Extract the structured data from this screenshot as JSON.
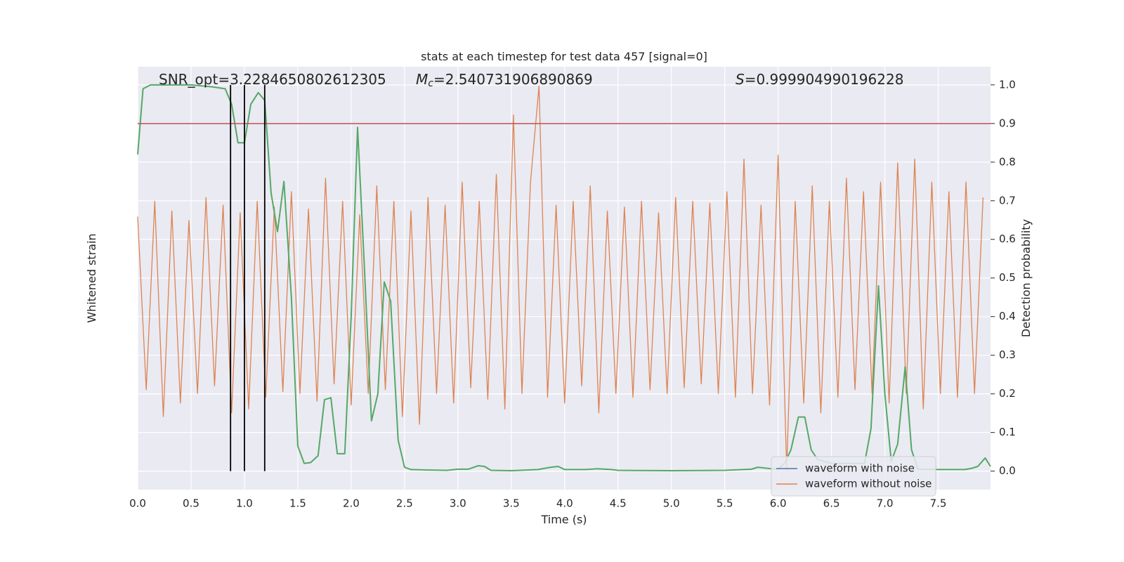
{
  "chart_data": {
    "type": "line",
    "title": "stats at each timestep for test data 457 [signal=0]",
    "xlabel": "Time (s)",
    "ylabel": "Whitened strain",
    "y2label": "Detection probability",
    "annotations": [
      {
        "text": "SNR_opt=3.2284650802612305"
      },
      {
        "symbol": "M",
        "sub": "c",
        "text": "=2.540731906890869"
      },
      {
        "symbol": "S",
        "text": "=0.999904990196228"
      }
    ],
    "xlim": [
      0,
      7.99
    ],
    "xticks": [
      {
        "value": 0,
        "label": "0.0"
      },
      0.5,
      {
        "value": 1,
        "label": "1.0"
      },
      1.5,
      {
        "value": 2,
        "label": "2.0"
      },
      2.5,
      {
        "value": 3,
        "label": "3.0"
      },
      3.5,
      {
        "value": 4,
        "label": "4.0"
      },
      4.5,
      {
        "value": 5,
        "label": "5.0"
      },
      5.5,
      {
        "value": 6,
        "label": "6.0"
      },
      6.5,
      {
        "value": 7,
        "label": "7.0"
      },
      7.5
    ],
    "ylim": [
      -1,
      1.2
    ],
    "y2lim": [
      -0.048,
      1.047
    ],
    "y2ticks": [
      {
        "value": 0,
        "label": "0.0"
      },
      0.1,
      0.2,
      0.3,
      0.4,
      0.5,
      0.6,
      0.7,
      0.8,
      0.9,
      {
        "value": 1,
        "label": "1.0"
      }
    ],
    "grid": true,
    "legend": "lower right",
    "series": [
      {
        "name": "waveform with noise",
        "color": "#4c72b0"
      },
      {
        "name": "waveform without noise",
        "color": "#dd8452",
        "x": [
          0,
          0.08,
          0.16,
          0.24,
          0.32,
          0.4,
          0.48,
          0.56,
          0.64,
          0.72,
          0.8,
          0.88,
          0.96,
          1.04,
          1.12,
          1.2,
          1.28,
          1.36,
          1.44,
          1.52,
          1.6,
          1.68,
          1.76,
          1.84,
          1.92,
          2,
          2.08,
          2.16,
          2.24,
          2.32,
          2.4,
          2.48,
          2.56,
          2.64,
          2.72,
          2.8,
          2.88,
          2.96,
          3.04,
          3.12,
          3.2,
          3.28,
          3.36,
          3.44,
          3.52,
          3.6,
          3.68,
          3.76,
          3.84,
          3.92,
          4,
          4.08,
          4.16,
          4.24,
          4.32,
          4.4,
          4.48,
          4.56,
          4.64,
          4.72,
          4.8,
          4.88,
          4.96,
          5.04,
          5.12,
          5.2,
          5.28,
          5.36,
          5.44,
          5.52,
          5.6,
          5.68,
          5.76,
          5.84,
          5.92,
          6,
          6.08,
          6.16,
          6.24,
          6.32,
          6.4,
          6.48,
          6.56,
          6.64,
          6.72,
          6.8,
          6.88,
          6.96,
          7.04,
          7.12,
          7.2,
          7.28,
          7.36,
          7.44,
          7.52,
          7.6,
          7.68,
          7.76,
          7.84,
          7.92
        ],
        "values": [
          0.42,
          -0.48,
          0.5,
          -0.62,
          0.45,
          -0.55,
          0.4,
          -0.5,
          0.52,
          -0.46,
          0.48,
          -0.6,
          0.44,
          -0.58,
          0.5,
          -0.52,
          0.47,
          -0.49,
          0.55,
          -0.5,
          0.46,
          -0.54,
          0.62,
          -0.45,
          0.5,
          -0.56,
          0.43,
          -0.5,
          0.58,
          -0.48,
          0.5,
          -0.62,
          0.45,
          -0.66,
          0.52,
          -0.5,
          0.48,
          -0.55,
          0.6,
          -0.47,
          0.5,
          -0.53,
          0.64,
          -0.58,
          0.95,
          -0.5,
          0.6,
          1.1,
          -0.52,
          0.48,
          -0.55,
          0.5,
          -0.46,
          0.58,
          -0.6,
          0.45,
          -0.5,
          0.47,
          -0.52,
          0.5,
          -0.48,
          0.44,
          -0.5,
          0.52,
          -0.47,
          0.5,
          -0.45,
          0.49,
          -0.5,
          0.55,
          -0.52,
          0.72,
          -0.5,
          0.48,
          -0.56,
          0.74,
          -0.9,
          0.5,
          -0.55,
          0.58,
          -0.6,
          0.5,
          -0.52,
          0.62,
          -0.48,
          0.55,
          -0.5,
          0.6,
          -0.55,
          0.7,
          -0.5,
          0.72,
          -0.58,
          0.6,
          -0.5,
          0.55,
          -0.52,
          0.6,
          -0.5,
          0.52
        ]
      },
      {
        "color": "#55a868",
        "axis": "y2",
        "x": [
          0,
          0.05,
          0.12,
          0.3,
          0.5,
          0.7,
          0.82,
          0.88,
          0.94,
          1,
          1.06,
          1.13,
          1.19,
          1.25,
          1.31,
          1.37,
          1.44,
          1.5,
          1.56,
          1.62,
          1.69,
          1.75,
          1.81,
          1.87,
          1.94,
          2,
          2.06,
          2.12,
          2.19,
          2.25,
          2.31,
          2.37,
          2.44,
          2.5,
          2.56,
          2.7,
          2.9,
          3,
          3.1,
          3.19,
          3.25,
          3.31,
          3.5,
          3.75,
          3.87,
          3.94,
          4,
          4.2,
          4.3,
          4.44,
          4.5,
          5,
          5.5,
          5.75,
          5.81,
          5.94,
          6,
          6.06,
          6.12,
          6.19,
          6.25,
          6.31,
          6.37,
          6.5,
          6.7,
          6.81,
          6.87,
          6.94,
          7,
          7.06,
          7.12,
          7.19,
          7.25,
          7.31,
          7.5,
          7.75,
          7.81,
          7.87,
          7.94,
          7.99
        ],
        "values": [
          0.82,
          0.99,
          1,
          1,
          1,
          0.995,
          0.99,
          0.95,
          0.85,
          0.85,
          0.95,
          0.98,
          0.96,
          0.72,
          0.62,
          0.75,
          0.45,
          0.065,
          0.02,
          0.022,
          0.04,
          0.185,
          0.19,
          0.045,
          0.045,
          0.4,
          0.89,
          0.55,
          0.13,
          0.2,
          0.49,
          0.44,
          0.08,
          0.01,
          0.004,
          0.003,
          0.002,
          0.005,
          0.005,
          0.014,
          0.012,
          0.002,
          0.001,
          0.004,
          0.01,
          0.012,
          0.004,
          0.004,
          0.006,
          0.004,
          0.002,
          0.001,
          0.002,
          0.005,
          0.01,
          0.006,
          0.005,
          0.02,
          0.055,
          0.14,
          0.14,
          0.055,
          0.03,
          0.02,
          0.02,
          0.02,
          0.11,
          0.48,
          0.2,
          0.025,
          0.07,
          0.27,
          0.055,
          0.005,
          0.004,
          0.004,
          0.007,
          0.012,
          0.034,
          0.012
        ]
      }
    ],
    "threshold": {
      "value": 0.9,
      "color": "#c44e52"
    },
    "vlines": {
      "x": [
        0.87,
        1.0,
        1.19
      ],
      "ymin": 0,
      "ymax": 1.0,
      "color": "#000000"
    }
  }
}
